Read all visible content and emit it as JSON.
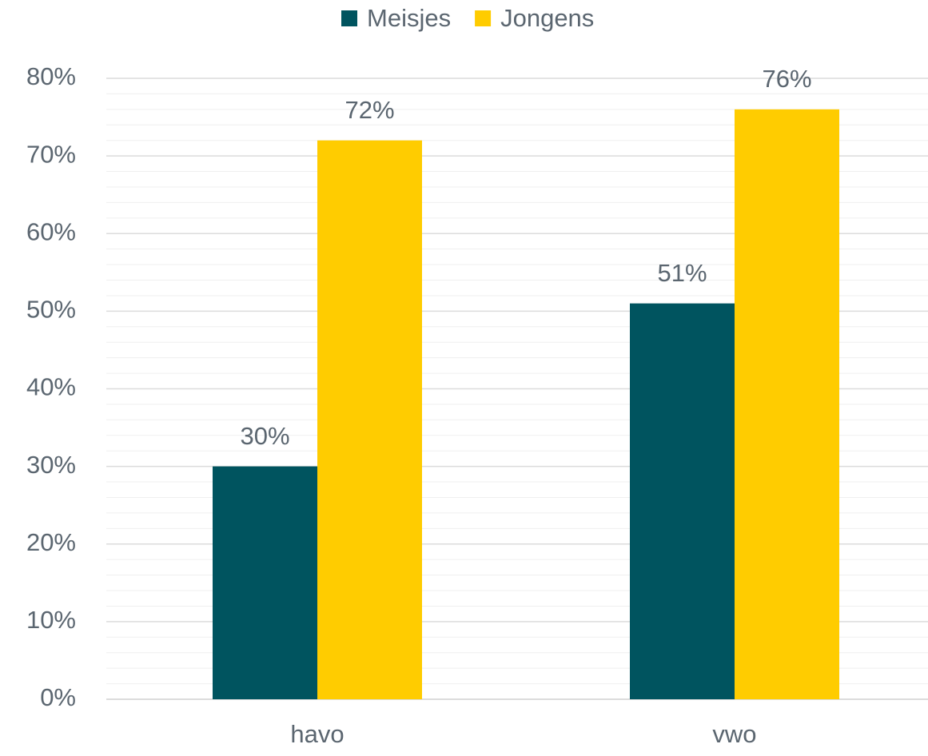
{
  "chart_data": {
    "type": "bar",
    "categories": [
      "havo",
      "vwo"
    ],
    "series": [
      {
        "name": "Meisjes",
        "color": "#00545f",
        "values": [
          30,
          51
        ],
        "value_labels": [
          "30%",
          "51%"
        ]
      },
      {
        "name": "Jongens",
        "color": "#ffcc00",
        "values": [
          72,
          76
        ],
        "value_labels": [
          "72%",
          "76%"
        ]
      }
    ],
    "ylim": [
      0,
      80
    ],
    "yticks": [
      {
        "value": 0,
        "label": "0%"
      },
      {
        "value": 10,
        "label": "10%"
      },
      {
        "value": 20,
        "label": "20%"
      },
      {
        "value": 30,
        "label": "30%"
      },
      {
        "value": 40,
        "label": "40%"
      },
      {
        "value": 50,
        "label": "50%"
      },
      {
        "value": 60,
        "label": "60%"
      },
      {
        "value": 70,
        "label": "70%"
      },
      {
        "value": 80,
        "label": "80%"
      }
    ],
    "grid": true,
    "minor_grid": true,
    "legend": "top"
  }
}
